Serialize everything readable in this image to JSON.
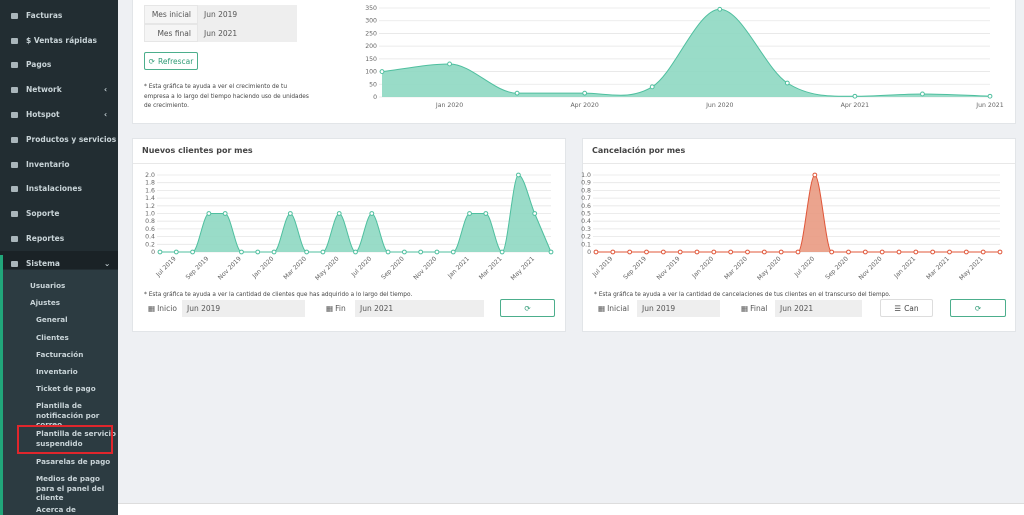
{
  "sidebar": {
    "items": [
      "Facturas",
      "$ Ventas rápidas",
      "Pagos",
      "Network",
      "Hotspot",
      "Productos y servicios",
      "Inventario",
      "Instalaciones",
      "Soporte",
      "Reportes",
      "Sistema"
    ],
    "sub": [
      "Usuarios",
      "Ajustes"
    ],
    "settings": [
      "General",
      "Clientes",
      "Facturación",
      "Inventario",
      "Ticket de pago",
      "Plantilla de notificación por correo",
      "Plantilla de servicio suspendido",
      "Pasarelas de pago",
      "Medios de pago para el panel del cliente",
      "Acerca de"
    ]
  },
  "growth_form": {
    "start_label": "Mes inicial",
    "start_value": "Jun 2019",
    "end_label": "Mes final",
    "end_value": "Jun 2021",
    "button": "Refrescar",
    "note": "* Esta gráfica te ayuda a ver el crecimiento de tu empresa a lo largo del tiempo haciendo uso de unidades de crecimiento."
  },
  "clients_form": {
    "note": "* Esta gráfica te ayuda a ver la cantidad de clientes que has adquirido a lo largo del tiempo.",
    "start_label": "Inicio",
    "start_value": "Jun 2019",
    "end_label": "Fin",
    "end_value": "Jun 2021"
  },
  "cancel_form": {
    "note": "* Esta gráfica te ayuda a ver la cantidad de cancelaciones de tus clientes en el transcurso del tiempo.",
    "start_label": "Inicial",
    "start_value": "Jun 2019",
    "end_label": "Final",
    "end_value": "Jun 2021",
    "button": "Can"
  },
  "chart_data": [
    {
      "type": "area",
      "categories": [
        null,
        "Jan 2020",
        null,
        "Apr 2020",
        null,
        "Jun 2020",
        null,
        "Apr 2021",
        null,
        "Jun 2021"
      ],
      "values": [
        100,
        130,
        15,
        15,
        40,
        345,
        55,
        3,
        12,
        3
      ],
      "color": "#4fbf9f",
      "area_color": "#8ed8c2",
      "ylim": [
        0,
        350
      ],
      "yticks": [
        0,
        50,
        100,
        150,
        200,
        250,
        300,
        350
      ],
      "grid": true,
      "rotate_labels": false
    },
    {
      "type": "area",
      "title": "Nuevos clientes por mes",
      "categories": [
        null,
        "Jul 2019",
        null,
        "Sep 2019",
        null,
        "Nov 2019",
        null,
        "Jan 2020",
        null,
        "Mar 2020",
        null,
        "May 2020",
        null,
        "Jul 2020",
        null,
        "Sep 2020",
        null,
        "Nov 2020",
        null,
        "Jan 2021",
        null,
        "Mar 2021",
        null,
        "May 2021",
        null
      ],
      "values": [
        0,
        0,
        0,
        1,
        1,
        0,
        0,
        0,
        1,
        0,
        0,
        1,
        0,
        1,
        0,
        0,
        0,
        0,
        0,
        1,
        1,
        0,
        2,
        1,
        0
      ],
      "color": "#4fbf9f",
      "area_color": "#8ed8c2",
      "ylim": [
        0,
        2
      ],
      "yticks": [
        0,
        0.2,
        0.4,
        0.6,
        0.8,
        {
          "value": 1,
          "label": "1.0"
        },
        1.2,
        1.4,
        1.6,
        1.8,
        {
          "value": 2,
          "label": "2.0"
        }
      ],
      "grid": true,
      "rotate_labels": true
    },
    {
      "type": "area",
      "title": "Cancelación por mes",
      "categories": [
        null,
        "Jul 2019",
        null,
        "Sep 2019",
        null,
        "Nov 2019",
        null,
        "Jan 2020",
        null,
        "Mar 2020",
        null,
        "May 2020",
        null,
        "Jul 2020",
        null,
        "Sep 2020",
        null,
        "Nov 2020",
        null,
        "Jan 2021",
        null,
        "Mar 2021",
        null,
        "May 2021",
        null
      ],
      "values": [
        0,
        0,
        0,
        0,
        0,
        0,
        0,
        0,
        0,
        0,
        0,
        0,
        0,
        1,
        0,
        0,
        0,
        0,
        0,
        0,
        0,
        0,
        0,
        0,
        0
      ],
      "color": "#e0573a",
      "area_color": "#e99a82",
      "ylim": [
        0,
        1
      ],
      "yticks": [
        0,
        0.1,
        0.2,
        0.3,
        0.4,
        0.5,
        0.6,
        0.7,
        0.8,
        0.9,
        {
          "value": 1,
          "label": "1.0"
        }
      ],
      "grid": true,
      "rotate_labels": true
    }
  ]
}
